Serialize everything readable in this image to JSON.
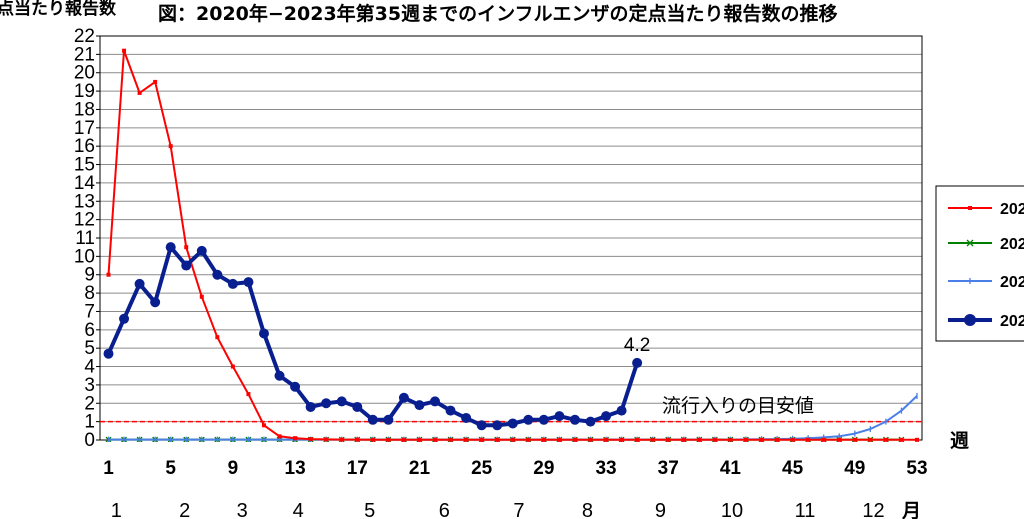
{
  "chart_data": {
    "type": "line",
    "title": "図：2020年−2023年第35週までのインフルエンザの定点当たり報告数の推移",
    "ylabel": "定点当たり報告数",
    "xlabel_unit": "週",
    "month_unit": "月",
    "ylim": [
      0,
      22
    ],
    "y_ticks": [
      0,
      1,
      2,
      3,
      4,
      5,
      6,
      7,
      8,
      9,
      10,
      11,
      12,
      13,
      14,
      15,
      16,
      17,
      18,
      19,
      20,
      21,
      22
    ],
    "xlim": [
      1,
      53
    ],
    "x_ticks": [
      1,
      5,
      9,
      13,
      17,
      21,
      25,
      29,
      33,
      37,
      41,
      45,
      49,
      53
    ],
    "months": [
      {
        "label": "1",
        "week": 1.5
      },
      {
        "label": "2",
        "week": 5.9
      },
      {
        "label": "3",
        "week": 9.6
      },
      {
        "label": "4",
        "week": 13.2
      },
      {
        "label": "5",
        "week": 17.8
      },
      {
        "label": "6",
        "week": 22.6
      },
      {
        "label": "7",
        "week": 27.4
      },
      {
        "label": "8",
        "week": 31.8
      },
      {
        "label": "9",
        "week": 36.5
      },
      {
        "label": "10",
        "week": 41.1
      },
      {
        "label": "11",
        "week": 45.8
      },
      {
        "label": "12",
        "week": 50.2
      }
    ],
    "threshold": {
      "value": 1,
      "label": "流行入りの目安値",
      "color": "#ff0000"
    },
    "annotation": {
      "text": "4.2",
      "week": 35
    },
    "series": [
      {
        "name": "202",
        "color": "#ff0000",
        "width": 2,
        "marker": "square",
        "values": [
          9.0,
          21.2,
          18.9,
          19.5,
          16.0,
          10.5,
          7.8,
          5.6,
          4.0,
          2.5,
          0.8,
          0.2,
          0.1,
          0.05,
          0.03,
          0.02,
          0.02,
          0.01,
          0.01,
          0.01,
          0.01,
          0.01,
          0.01,
          0.01,
          0.01,
          0.01,
          0.01,
          0.01,
          0.01,
          0.01,
          0.01,
          0.01,
          0.01,
          0.01,
          0.01,
          0.01,
          0.01,
          0.01,
          0.01,
          0.01,
          0.01,
          0.01,
          0.01,
          0.01,
          0.01,
          0.01,
          0.01,
          0.01,
          0.01,
          0.01,
          0.01,
          0.01,
          0.01
        ]
      },
      {
        "name": "202",
        "color": "#008000",
        "width": 2,
        "marker": "x",
        "values": [
          0.02,
          0.02,
          0.02,
          0.02,
          0.02,
          0.02,
          0.02,
          0.02,
          0.02,
          0.02,
          0.02,
          0.02,
          0.02,
          0.02,
          0.02,
          0.02,
          0.02,
          0.02,
          0.02,
          0.02,
          0.02,
          0.02,
          0.02,
          0.02,
          0.02,
          0.02,
          0.02,
          0.02,
          0.02,
          0.02,
          0.02,
          0.02,
          0.02,
          0.02,
          0.02,
          0.02,
          0.02,
          0.02,
          0.02,
          0.02,
          0.02,
          0.02,
          0.02,
          0.02,
          0.02,
          0.02,
          0.02,
          0.02,
          0.02,
          0.02,
          0.02,
          0.02
        ]
      },
      {
        "name": "202",
        "color": "#4a7ee8",
        "width": 2,
        "marker": "tick",
        "values": [
          0.02,
          0.02,
          0.02,
          0.02,
          0.02,
          0.02,
          0.02,
          0.02,
          0.02,
          0.02,
          0.02,
          0.02,
          0.02,
          0.02,
          0.02,
          0.02,
          0.02,
          0.02,
          0.02,
          0.02,
          0.02,
          0.02,
          0.02,
          0.02,
          0.02,
          0.02,
          0.02,
          0.02,
          0.02,
          0.02,
          0.02,
          0.02,
          0.02,
          0.02,
          0.02,
          0.02,
          0.02,
          0.02,
          0.02,
          0.02,
          0.02,
          0.03,
          0.04,
          0.05,
          0.07,
          0.1,
          0.14,
          0.2,
          0.35,
          0.6,
          1.0,
          1.6,
          2.4
        ]
      },
      {
        "name": "202",
        "color": "#0a1f8f",
        "width": 4,
        "marker": "circle",
        "values": [
          4.7,
          6.6,
          8.5,
          7.5,
          10.5,
          9.5,
          10.3,
          9.0,
          8.5,
          8.6,
          5.8,
          3.5,
          2.9,
          1.8,
          2.0,
          2.1,
          1.8,
          1.1,
          1.1,
          2.3,
          1.9,
          2.1,
          1.6,
          1.2,
          0.8,
          0.8,
          0.9,
          1.1,
          1.1,
          1.3,
          1.1,
          1.0,
          1.3,
          1.6,
          4.2
        ]
      }
    ],
    "legend": {
      "position": "right"
    }
  }
}
